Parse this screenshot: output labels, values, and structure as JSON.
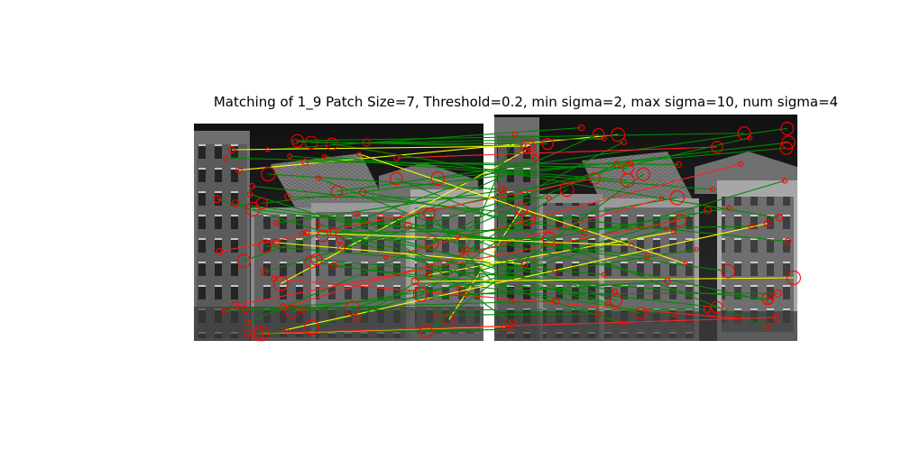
{
  "figure": {
    "title": "Matching of 1_9 Patch Size=7, Threshold=0.2, min sigma=2, max sigma=10, num sigma=4"
  },
  "images": [
    {
      "name": "left-photo",
      "description": "grayscale street facade with gabled houses"
    },
    {
      "name": "right-photo",
      "description": "grayscale street facade with gabled houses"
    }
  ],
  "colors": {
    "keypoint": "#ff0000",
    "match_good": "#008800",
    "match_wrong": "#ff2020",
    "match_alt": "#ffff00",
    "background": "#ffffff"
  }
}
